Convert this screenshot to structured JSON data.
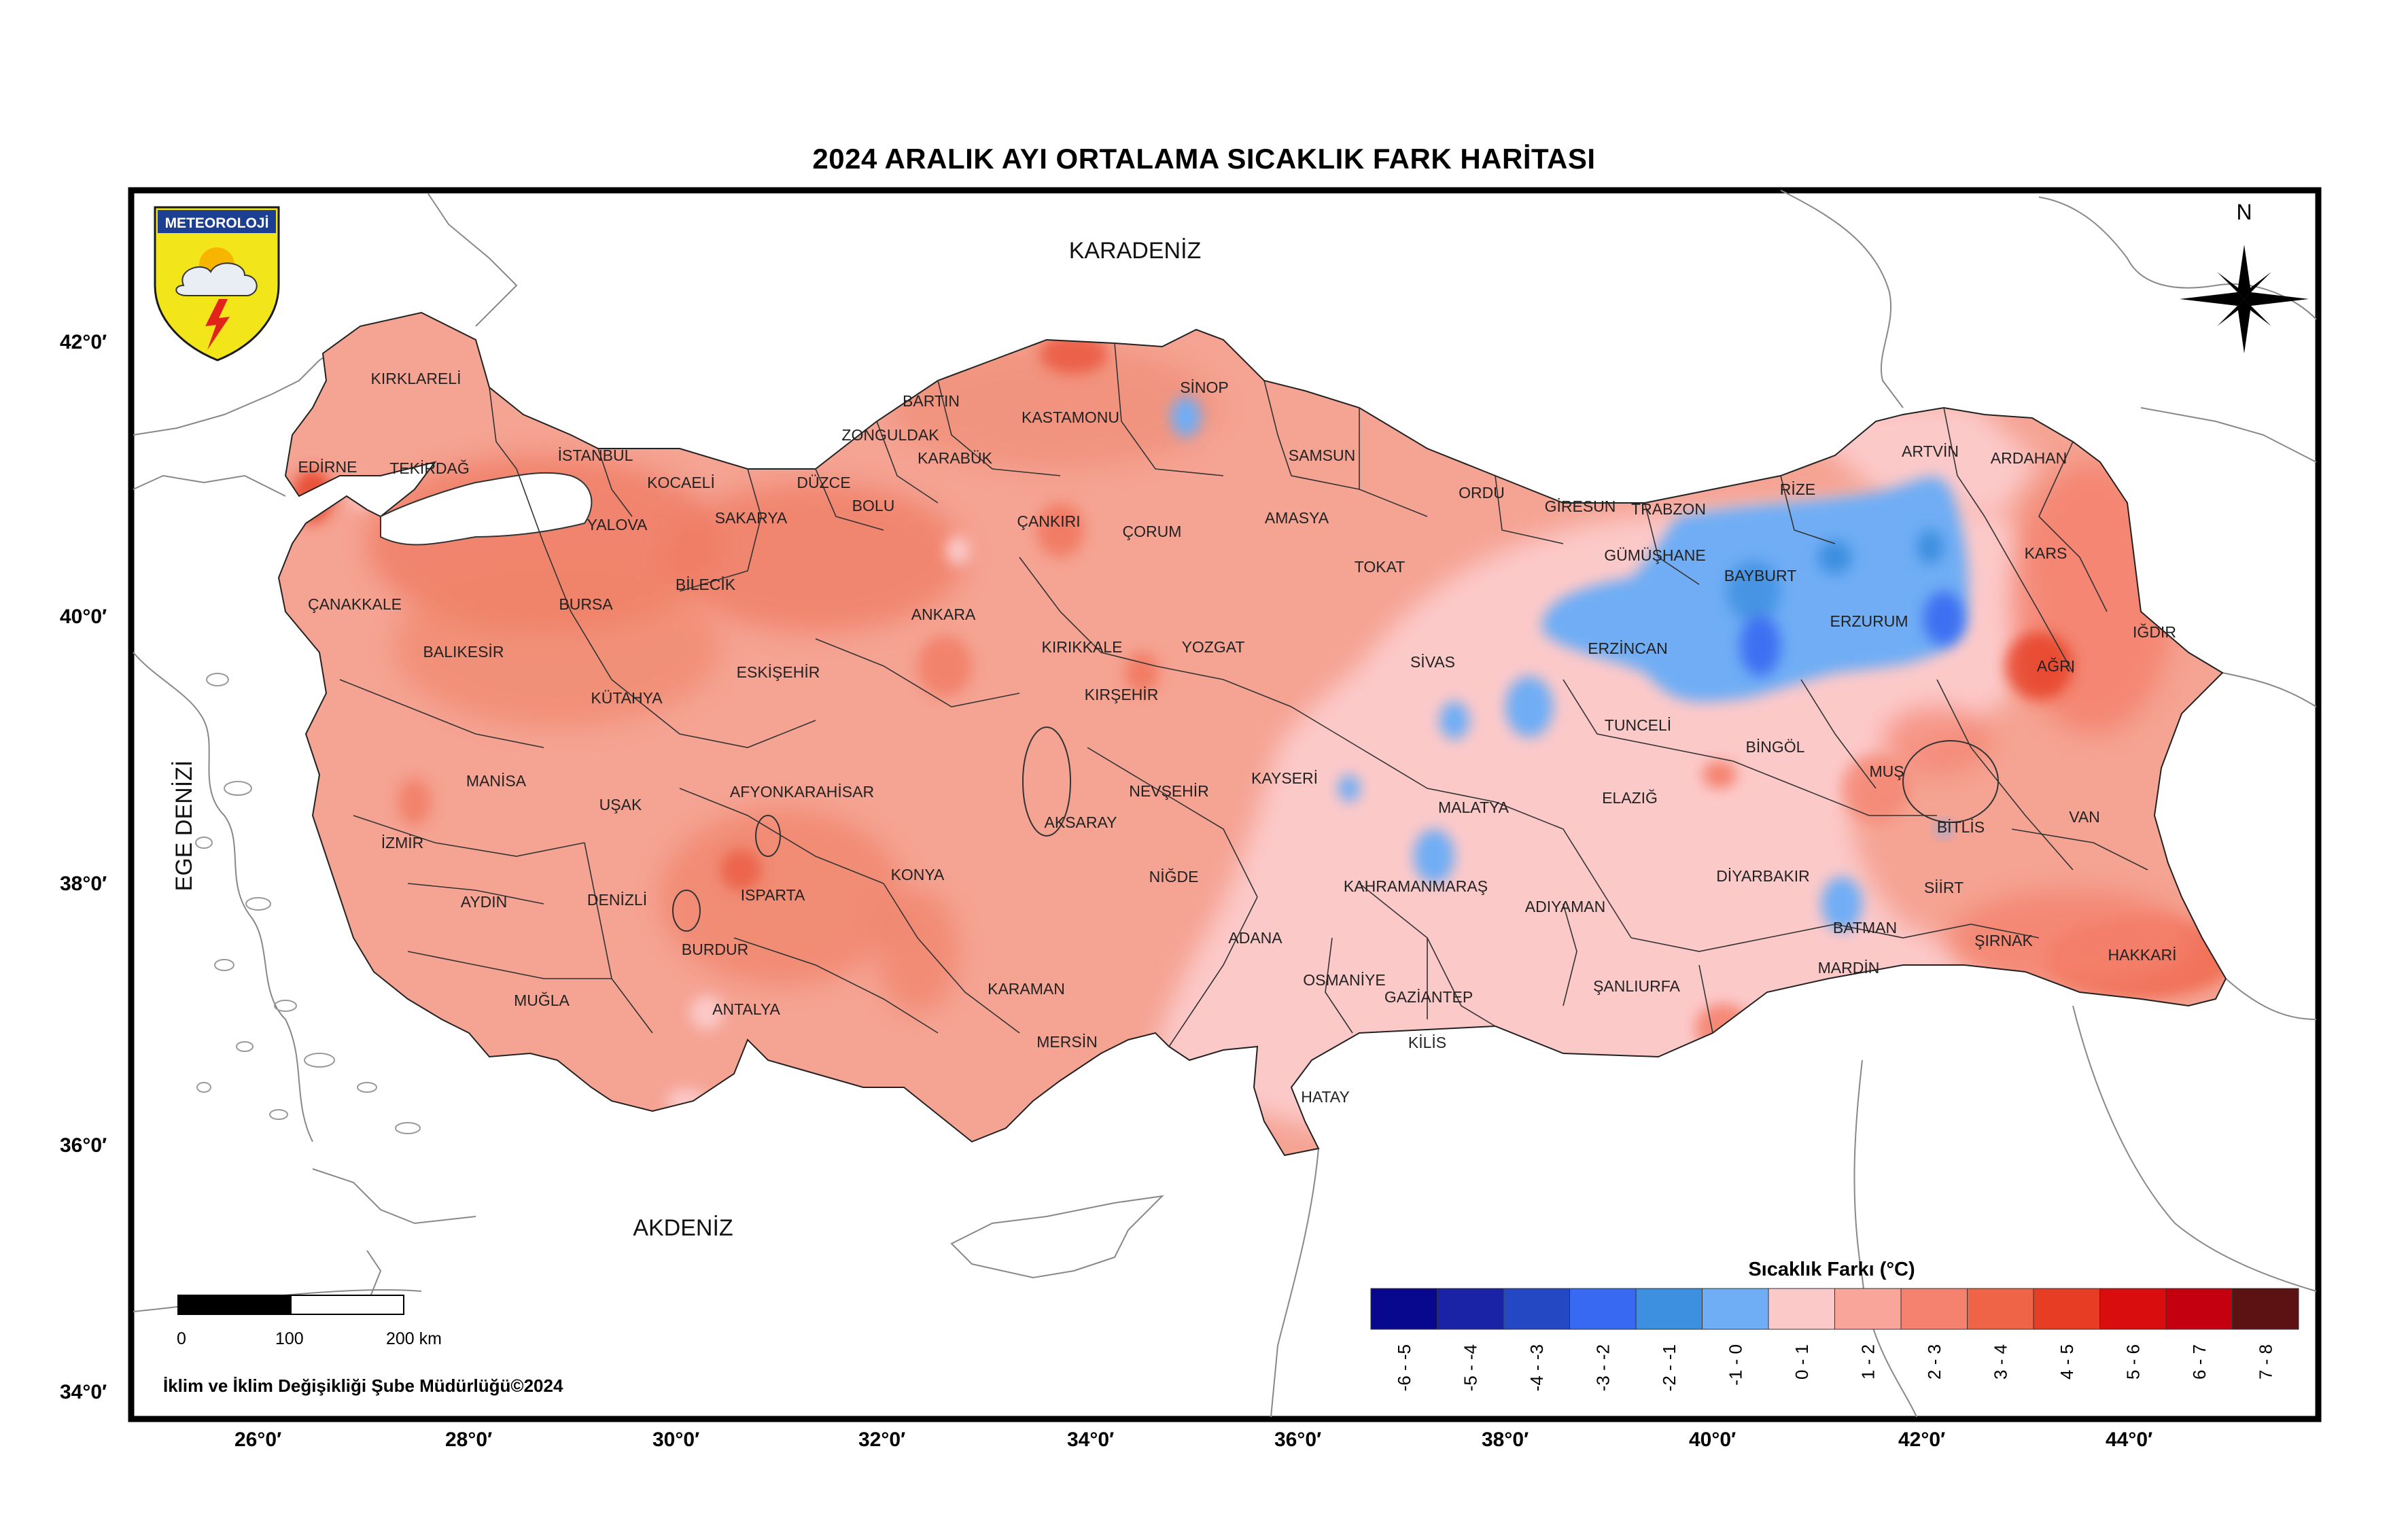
{
  "title": "2024 ARALIK AYI ORTALAMA SICAKLIK FARK HARİTASI",
  "logo": {
    "text": "METEOROLOJİ",
    "colors": {
      "bg": "#f2e51a",
      "band": "#1c3f93",
      "sun": "#f7b500",
      "bolt": "#e2231a"
    }
  },
  "north_label": "N",
  "seas": {
    "north": "KARADENİZ",
    "west": "EGE DENİZİ",
    "south": "AKDENİZ"
  },
  "provinces": [
    "KIRKLARELİ",
    "EDİRNE",
    "TEKİRDAĞ",
    "İSTANBUL",
    "KOCAELİ",
    "DÜZCE",
    "SAKARYA",
    "YALOVA",
    "BOLU",
    "ZONGULDAK",
    "BARTIN",
    "KARABÜK",
    "KASTAMONU",
    "SİNOP",
    "SAMSUN",
    "ORDU",
    "GİRESUN",
    "TRABZON",
    "RİZE",
    "ARTVİN",
    "ARDAHAN",
    "KARS",
    "IĞDIR",
    "AĞRI",
    "ERZURUM",
    "BAYBURT",
    "GÜMÜŞHANE",
    "ERZİNCAN",
    "ÇORUM",
    "AMASYA",
    "TOKAT",
    "ÇANKIRI",
    "ANKARA",
    "BİLECİK",
    "BURSA",
    "ÇANAKKALE",
    "BALIKESİR",
    "KÜTAHYA",
    "ESKİŞEHİR",
    "KIRIKKALE",
    "YOZGAT",
    "SİVAS",
    "KIRŞEHİR",
    "NEVŞEHİR",
    "KAYSERİ",
    "MANİSA",
    "UŞAK",
    "AFYONKARAHİSAR",
    "İZMİR",
    "AYDIN",
    "DENİZLİ",
    "ISPARTA",
    "BURDUR",
    "KONYA",
    "AKSARAY",
    "NİĞDE",
    "MUĞLA",
    "ANTALYA",
    "KARAMAN",
    "MERSİN",
    "ADANA",
    "OSMANİYE",
    "KAHRAMANMARAŞ",
    "MALATYA",
    "ADIYAMAN",
    "GAZİANTEP",
    "KİLİS",
    "HATAY",
    "ŞANLIURFA",
    "TUNCELİ",
    "ELAZIĞ",
    "BİNGÖL",
    "MUŞ",
    "BİTLİS",
    "VAN",
    "DİYARBAKIR",
    "BATMAN",
    "SİİRT",
    "MARDİN",
    "ŞIRNAK",
    "HAKKARİ"
  ],
  "lat_labels": [
    "42°0′",
    "40°0′",
    "38°0′",
    "36°0′",
    "34°0′"
  ],
  "lon_labels": [
    "26°0′",
    "28°0′",
    "30°0′",
    "32°0′",
    "34°0′",
    "36°0′",
    "38°0′",
    "40°0′",
    "42°0′",
    "44°0′"
  ],
  "legend": {
    "title": "Sıcaklık Farkı (°C)",
    "bins": [
      {
        "label": "-6 - -5",
        "color": "#08088f"
      },
      {
        "label": "-5 - -4",
        "color": "#1a22a6"
      },
      {
        "label": "-4 - -3",
        "color": "#2448c4"
      },
      {
        "label": "-3 - -2",
        "color": "#3769f2"
      },
      {
        "label": "-2 - -1",
        "color": "#3d8fe0"
      },
      {
        "label": "-1 - 0",
        "color": "#6fadf5"
      },
      {
        "label": "0 - 1",
        "color": "#fcc9c9"
      },
      {
        "label": "1 - 2",
        "color": "#f9a59a"
      },
      {
        "label": "2 - 3",
        "color": "#f4826e"
      },
      {
        "label": "3 - 4",
        "color": "#ef6347"
      },
      {
        "label": "4 - 5",
        "color": "#e63d24"
      },
      {
        "label": "5 - 6",
        "color": "#d90d0d"
      },
      {
        "label": "6 - 7",
        "color": "#c40010"
      },
      {
        "label": "7 - 8",
        "color": "#5c1212"
      }
    ]
  },
  "scale_bar": {
    "ticks": [
      "0",
      "100",
      "200 km"
    ]
  },
  "credit": "İklim ve İklim Değişikliği Şube Müdürlüğü©2024"
}
